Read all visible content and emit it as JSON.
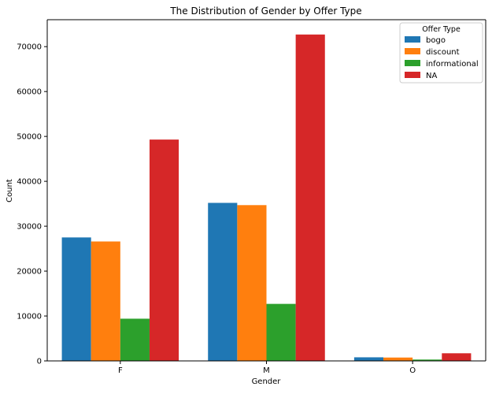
{
  "chart_data": {
    "type": "bar",
    "title": "The Distribution of Gender by Offer Type",
    "xlabel": "Gender",
    "ylabel": "Count",
    "categories": [
      "F",
      "M",
      "O"
    ],
    "ylim": [
      0,
      76000
    ],
    "yticks": [
      0,
      10000,
      20000,
      30000,
      40000,
      50000,
      60000,
      70000
    ],
    "grid": false,
    "legend": {
      "title": "Offer Type",
      "placement": "top-right"
    },
    "series": [
      {
        "name": "bogo",
        "color": "#1f77b4",
        "values": [
          27500,
          35200,
          800
        ]
      },
      {
        "name": "discount",
        "color": "#ff7f0e",
        "values": [
          26600,
          34700,
          750
        ]
      },
      {
        "name": "informational",
        "color": "#2ca02c",
        "values": [
          9400,
          12700,
          300
        ]
      },
      {
        "name": "NA",
        "color": "#d62728",
        "values": [
          49300,
          72700,
          1700
        ]
      }
    ]
  }
}
